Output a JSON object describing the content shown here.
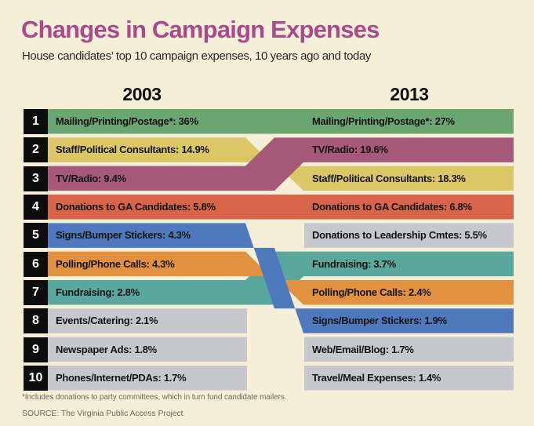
{
  "header": {
    "title": "Changes in Campaign Expenses",
    "subtitle": "House candidates’ top 10 campaign expenses, 10 years ago and today"
  },
  "footer": {
    "footnote": "*Includes donations to party committees, which in turn fund candidate mailers.",
    "source": "SOURCE: The Virginia Public Access Project"
  },
  "chart_data": {
    "type": "slope-bands",
    "title": "Changes in Campaign Expenses",
    "subtitle": "House candidates’ top 10 campaign expenses, 10 years ago and today",
    "columns": [
      "2003",
      "2013"
    ],
    "unit": "percent of spending",
    "palette": {
      "green": "#6aa572",
      "yellow": "#dcc766",
      "maroon": "#a55877",
      "red": "#d8644a",
      "blue": "#4f79bd",
      "orange": "#e2913e",
      "teal": "#5aa79e",
      "gray": "#c6c8cc",
      "chip_black": "#0d0d0d",
      "background_cream": "#f6efd8",
      "title_magenta": "#a84a8c"
    },
    "left": [
      {
        "rank": 1,
        "label": "Mailing/Printing/Postage*",
        "value": 36,
        "display": "Mailing/Printing/Postage*: 36%"
      },
      {
        "rank": 2,
        "label": "Staff/Political Consultants",
        "value": 14.9,
        "display": "Staff/Political Consultants: 14.9%"
      },
      {
        "rank": 3,
        "label": "TV/Radio",
        "value": 9.4,
        "display": "TV/Radio: 9.4%"
      },
      {
        "rank": 4,
        "label": "Donations to GA Candidates",
        "value": 5.8,
        "display": "Donations to GA Candidates: 5.8%"
      },
      {
        "rank": 5,
        "label": "Signs/Bumper Stickers",
        "value": 4.3,
        "display": "Signs/Bumper Stickers: 4.3%"
      },
      {
        "rank": 6,
        "label": "Polling/Phone Calls",
        "value": 4.3,
        "display": "Polling/Phone Calls: 4.3%"
      },
      {
        "rank": 7,
        "label": "Fundraising",
        "value": 2.8,
        "display": "Fundraising: 2.8%"
      },
      {
        "rank": 8,
        "label": "Events/Catering",
        "value": 2.1,
        "display": "Events/Catering: 2.1%"
      },
      {
        "rank": 9,
        "label": "Newspaper Ads",
        "value": 1.8,
        "display": "Newspaper Ads: 1.8%"
      },
      {
        "rank": 10,
        "label": "Phones/Internet/PDAs",
        "value": 1.7,
        "display": "Phones/Internet/PDAs: 1.7%"
      }
    ],
    "right": [
      {
        "rank": 1,
        "label": "Mailing/Printing/Postage*",
        "value": 27,
        "display": "Mailing/Printing/Postage*: 27%"
      },
      {
        "rank": 2,
        "label": "TV/Radio",
        "value": 19.6,
        "display": "TV/Radio: 19.6%"
      },
      {
        "rank": 3,
        "label": "Staff/Political Consultants",
        "value": 18.3,
        "display": "Staff/Political Consultants: 18.3%"
      },
      {
        "rank": 4,
        "label": "Donations to GA Candidates",
        "value": 6.8,
        "display": "Donations to GA Candidates: 6.8%"
      },
      {
        "rank": 5,
        "label": "Donations to Leadership Cmtes",
        "value": 5.5,
        "display": "Donations to Leadership Cmtes: 5.5%"
      },
      {
        "rank": 6,
        "label": "Fundraising",
        "value": 3.7,
        "display": "Fundraising: 3.7%"
      },
      {
        "rank": 7,
        "label": "Polling/Phone Calls",
        "value": 2.4,
        "display": "Polling/Phone Calls: 2.4%"
      },
      {
        "rank": 8,
        "label": "Signs/Bumper Stickers",
        "value": 1.9,
        "display": "Signs/Bumper Stickers: 1.9%"
      },
      {
        "rank": 9,
        "label": "Web/Email/Blog",
        "value": 1.7,
        "display": "Web/Email/Blog: 1.7%"
      },
      {
        "rank": 10,
        "label": "Travel/Meal Expenses",
        "value": 1.4,
        "display": "Travel/Meal Expenses: 1.4%"
      }
    ],
    "bands": [
      {
        "name": "mailing-printing-postage",
        "color": "green",
        "left_rank": 1,
        "right_rank": 1
      },
      {
        "name": "donations-ga-candidates",
        "color": "red",
        "left_rank": 4,
        "right_rank": 4
      },
      {
        "name": "staff-political-consultants",
        "color": "yellow",
        "left_rank": 2,
        "right_rank": 3
      },
      {
        "name": "tv-radio",
        "color": "maroon",
        "left_rank": 3,
        "right_rank": 2
      },
      {
        "name": "fundraising",
        "color": "teal",
        "left_rank": 7,
        "right_rank": 6
      },
      {
        "name": "polling-phone-calls",
        "color": "orange",
        "left_rank": 6,
        "right_rank": 7
      },
      {
        "name": "signs-bumper-stickers",
        "color": "blue",
        "left_rank": 5,
        "right_rank": 8
      },
      {
        "name": "events-catering",
        "color": "gray",
        "left_rank": 8,
        "right_rank": null
      },
      {
        "name": "newspaper-ads",
        "color": "gray",
        "left_rank": 9,
        "right_rank": null
      },
      {
        "name": "phones-internet-pdas",
        "color": "gray",
        "left_rank": 10,
        "right_rank": null
      },
      {
        "name": "donations-leadership-cmtes",
        "color": "gray",
        "left_rank": null,
        "right_rank": 5
      },
      {
        "name": "web-email-blog",
        "color": "gray",
        "left_rank": null,
        "right_rank": 9
      },
      {
        "name": "travel-meal-expenses",
        "color": "gray",
        "left_rank": null,
        "right_rank": 10
      }
    ],
    "legend_position": "none",
    "grid": false,
    "footnote": "*Includes donations to party committees, which in turn fund candidate mailers.",
    "source": "SOURCE: The Virginia Public Access Project"
  }
}
